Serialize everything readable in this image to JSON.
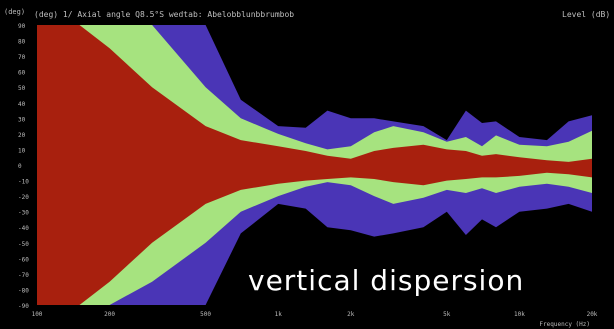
{
  "header": {
    "left": "(deg) 1/ Axial angle  Q8.5°S wedtab: Abelobblunbbrumbob",
    "right": "Level (dB)"
  },
  "caption": "vertical dispersion",
  "colors": {
    "background": "#000000",
    "red": "#a8200e",
    "green": "#a6e37f",
    "blue": "#4a35b6",
    "axis_text": "#bdbdbd"
  },
  "chart_data": {
    "type": "area",
    "title": "",
    "xlabel": "Frequency (Hz)",
    "ylabel": "(deg)",
    "x_scale": "log",
    "xlim": [
      100,
      20000
    ],
    "ylim": [
      -90,
      90
    ],
    "x_ticks": [
      {
        "value": 100,
        "label": "100"
      },
      {
        "value": 200,
        "label": "200"
      },
      {
        "value": 500,
        "label": "500"
      },
      {
        "value": 1000,
        "label": "1k"
      },
      {
        "value": 2000,
        "label": "2k"
      },
      {
        "value": 5000,
        "label": "5k"
      },
      {
        "value": 10000,
        "label": "10k"
      },
      {
        "value": 20000,
        "label": "20k"
      }
    ],
    "y_ticks": [
      90,
      80,
      70,
      60,
      50,
      40,
      30,
      20,
      10,
      0,
      -10,
      -20,
      -30,
      -40,
      -50,
      -60,
      -70,
      -80,
      -90
    ],
    "frequencies": [
      100,
      150,
      200,
      300,
      500,
      700,
      1000,
      1300,
      1600,
      2000,
      2500,
      3000,
      4000,
      5000,
      6000,
      7000,
      8000,
      10000,
      13000,
      16000,
      20000
    ],
    "series": [
      {
        "color": "#a8200e",
        "upper": [
          90,
          90,
          75,
          50,
          25,
          16,
          12,
          9,
          6,
          4,
          9,
          11,
          13,
          10,
          9,
          6,
          7,
          5,
          3,
          2,
          4
        ],
        "lower": [
          -90,
          -90,
          -75,
          -50,
          -25,
          -16,
          -12,
          -10,
          -9,
          -8,
          -9,
          -11,
          -13,
          -10,
          -9,
          -8,
          -8,
          -7,
          -5,
          -6,
          -8
        ]
      },
      {
        "color": "#a6e37f",
        "upper": [
          90,
          90,
          90,
          90,
          50,
          30,
          20,
          14,
          10,
          12,
          21,
          25,
          21,
          15,
          18,
          12,
          19,
          13,
          12,
          15,
          22
        ],
        "lower": [
          -90,
          -90,
          -90,
          -75,
          -50,
          -30,
          -20,
          -14,
          -11,
          -13,
          -20,
          -25,
          -21,
          -16,
          -18,
          -15,
          -18,
          -14,
          -12,
          -14,
          -18
        ]
      },
      {
        "color": "#4a35b6",
        "upper": [
          90,
          90,
          90,
          90,
          90,
          42,
          25,
          24,
          35,
          30,
          30,
          28,
          25,
          16,
          35,
          27,
          28,
          18,
          16,
          28,
          32
        ],
        "lower": [
          -90,
          -90,
          -90,
          -90,
          -90,
          -44,
          -25,
          -28,
          -40,
          -42,
          -46,
          -44,
          -40,
          -30,
          -45,
          -35,
          -40,
          -30,
          -28,
          -25,
          -30
        ]
      }
    ]
  }
}
